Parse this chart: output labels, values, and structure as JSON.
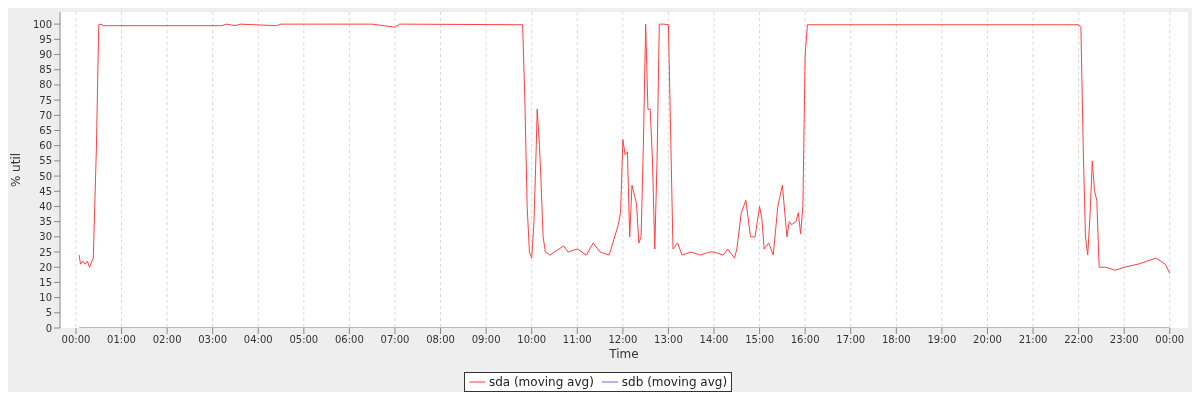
{
  "chart_data": {
    "type": "line",
    "xlabel": "Time",
    "ylabel": "% util",
    "xlim": [
      -0.35,
      24.4
    ],
    "ylim": [
      0,
      104
    ],
    "xticks": [
      {
        "value": 0,
        "label": "00:00"
      },
      {
        "value": 1,
        "label": "01:00"
      },
      {
        "value": 2,
        "label": "02:00"
      },
      {
        "value": 3,
        "label": "03:00"
      },
      {
        "value": 4,
        "label": "04:00"
      },
      {
        "value": 5,
        "label": "05:00"
      },
      {
        "value": 6,
        "label": "06:00"
      },
      {
        "value": 7,
        "label": "07:00"
      },
      {
        "value": 8,
        "label": "08:00"
      },
      {
        "value": 9,
        "label": "09:00"
      },
      {
        "value": 10,
        "label": "10:00"
      },
      {
        "value": 11,
        "label": "11:00"
      },
      {
        "value": 12,
        "label": "12:00"
      },
      {
        "value": 13,
        "label": "13:00"
      },
      {
        "value": 14,
        "label": "14:00"
      },
      {
        "value": 15,
        "label": "15:00"
      },
      {
        "value": 16,
        "label": "16:00"
      },
      {
        "value": 17,
        "label": "17:00"
      },
      {
        "value": 18,
        "label": "18:00"
      },
      {
        "value": 19,
        "label": "19:00"
      },
      {
        "value": 20,
        "label": "20:00"
      },
      {
        "value": 21,
        "label": "21:00"
      },
      {
        "value": 22,
        "label": "22:00"
      },
      {
        "value": 23,
        "label": "23:00"
      },
      {
        "value": 24,
        "label": "00:00"
      }
    ],
    "yticks": [
      0,
      5,
      10,
      15,
      20,
      25,
      30,
      35,
      40,
      45,
      50,
      55,
      60,
      65,
      70,
      75,
      80,
      85,
      90,
      95,
      100
    ],
    "grid": true,
    "legend": "bottom",
    "marker": "none",
    "line_style": "solid",
    "series": [
      {
        "name": "sda (moving avg)",
        "color": "#ff4040",
        "x": [
          0.07,
          0.1,
          0.15,
          0.2,
          0.25,
          0.3,
          0.35,
          0.38,
          0.45,
          0.5,
          0.55,
          0.6,
          3.2,
          3.3,
          3.5,
          3.6,
          4.4,
          4.5,
          5.5,
          6.5,
          7.0,
          7.1,
          7.2,
          9.8,
          9.85,
          9.9,
          9.95,
          10.0,
          10.05,
          10.1,
          10.12,
          10.17,
          10.2,
          10.25,
          10.3,
          10.4,
          10.5,
          10.7,
          10.8,
          11.0,
          11.2,
          11.35,
          11.5,
          11.7,
          11.8,
          11.9,
          11.95,
          12.0,
          12.05,
          12.1,
          12.15,
          12.2,
          12.3,
          12.35,
          12.4,
          12.45,
          12.5,
          12.55,
          12.6,
          12.65,
          12.7,
          12.75,
          12.8,
          12.9,
          13.0,
          13.1,
          13.2,
          13.3,
          13.5,
          13.7,
          13.9,
          14.0,
          14.2,
          14.3,
          14.4,
          14.45,
          14.5,
          14.6,
          14.7,
          14.8,
          14.9,
          15.0,
          15.05,
          15.1,
          15.2,
          15.3,
          15.35,
          15.4,
          15.5,
          15.6,
          15.65,
          15.7,
          15.8,
          15.85,
          15.9,
          15.95,
          16.0,
          16.05,
          22.0,
          22.05,
          22.1,
          22.15,
          22.2,
          22.25,
          22.3,
          22.35,
          22.4,
          22.45,
          22.6,
          22.8,
          23.0,
          23.3,
          23.5,
          23.7,
          23.9,
          24.0
        ],
        "values": [
          24,
          21,
          22,
          21,
          22,
          20,
          22,
          23,
          60,
          99.8,
          100,
          99.5,
          99.5,
          100,
          99.5,
          100,
          99.5,
          100,
          100,
          100,
          99,
          100,
          100,
          99.8,
          75,
          40,
          25,
          23,
          35,
          60,
          72,
          60,
          50,
          30,
          25,
          24,
          25,
          27,
          25,
          26,
          24,
          28,
          25,
          24,
          29,
          34,
          38,
          62,
          57,
          58,
          30,
          47,
          41,
          28,
          30,
          60,
          100,
          72,
          72,
          55,
          26,
          55,
          100,
          100,
          99.8,
          26,
          28,
          24,
          25,
          24,
          25,
          25,
          24,
          26,
          24,
          23,
          26,
          38,
          42,
          30,
          30,
          40,
          36,
          26,
          28,
          24,
          32,
          40,
          47,
          30,
          35,
          34,
          35,
          38,
          31,
          40,
          90,
          99.8,
          99.8,
          99,
          60,
          30,
          24,
          37,
          55,
          45,
          42,
          20,
          20,
          19,
          20,
          21,
          22,
          23,
          21,
          18
        ]
      },
      {
        "name": "sdb (moving avg)",
        "color": "#6666dd",
        "x": [
          0.07,
          24.0
        ],
        "values": [
          0,
          0
        ]
      }
    ]
  }
}
